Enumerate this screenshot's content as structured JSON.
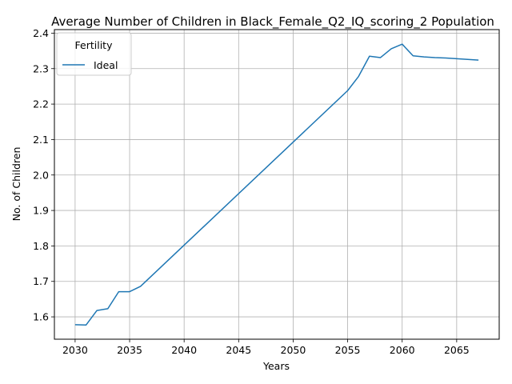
{
  "chart_data": {
    "type": "line",
    "title": "Average Number of Children in Black_Female_Q2_IQ_scoring_2 Population",
    "xlabel": "Years",
    "ylabel": "No. of Children",
    "xlim": [
      2028.1,
      2068.9
    ],
    "ylim": [
      1.537,
      2.41
    ],
    "x_ticks": [
      2030,
      2035,
      2040,
      2045,
      2050,
      2055,
      2060,
      2065
    ],
    "x_tick_labels": [
      "2030",
      "2035",
      "2040",
      "2045",
      "2050",
      "2055",
      "2060",
      "2065"
    ],
    "y_ticks": [
      1.6,
      1.7,
      1.8,
      1.9,
      2.0,
      2.1,
      2.2,
      2.3,
      2.4
    ],
    "y_tick_labels": [
      "1.6",
      "1.7",
      "1.8",
      "1.9",
      "2.0",
      "2.1",
      "2.2",
      "2.3",
      "2.4"
    ],
    "grid": true,
    "legend": {
      "title": "Fertility",
      "placement": "top-left"
    },
    "series": [
      {
        "name": "Ideal",
        "color": "#1f77b4",
        "x": [
          2030,
          2031,
          2032,
          2033,
          2034,
          2035,
          2036,
          2055,
          2056,
          2057,
          2058,
          2059,
          2060,
          2061,
          2062,
          2063,
          2064,
          2065,
          2066,
          2067
        ],
        "y": [
          1.578,
          1.577,
          1.618,
          1.623,
          1.671,
          1.671,
          1.686,
          2.238,
          2.278,
          2.335,
          2.331,
          2.356,
          2.369,
          2.336,
          2.333,
          2.331,
          2.33,
          2.328,
          2.326,
          2.324
        ]
      }
    ]
  }
}
